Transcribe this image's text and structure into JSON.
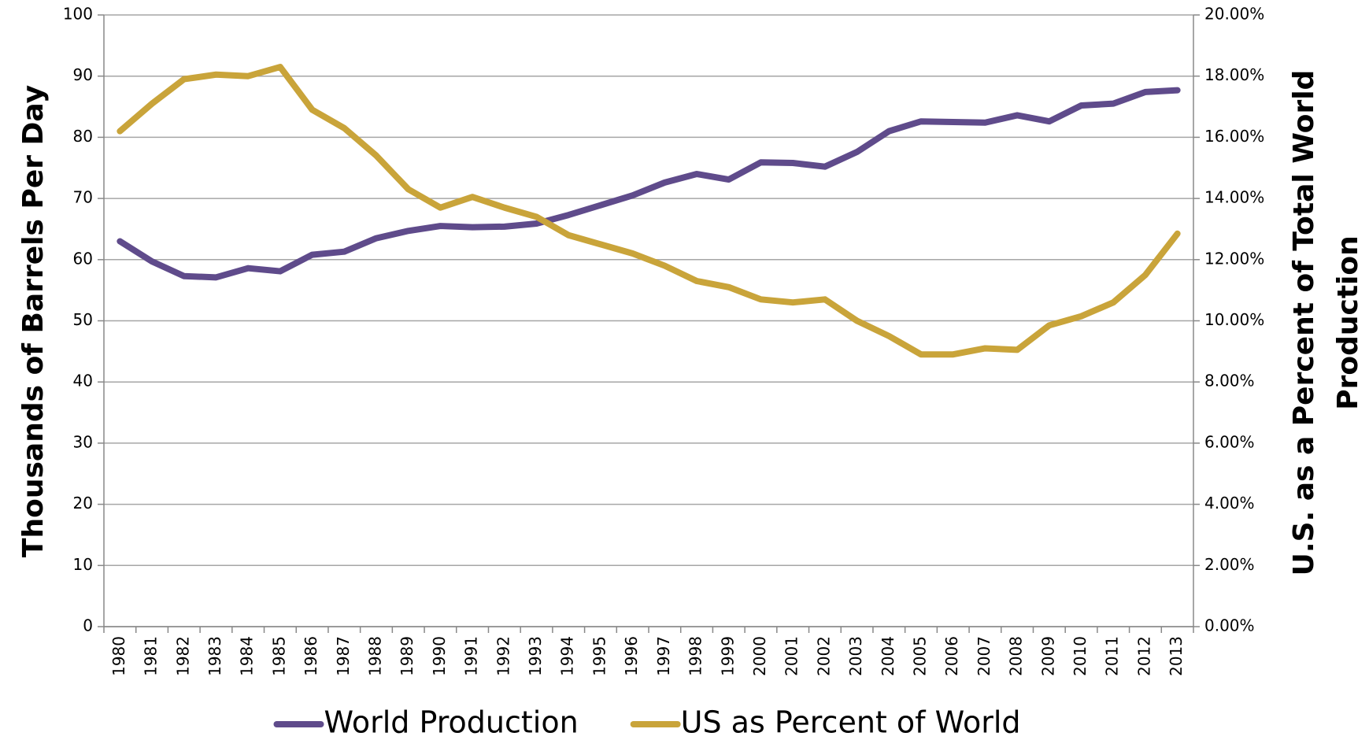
{
  "chart_data": {
    "type": "line",
    "ylabel": "Thousands of Barrels Per Day",
    "y2label": "U.S. as a Percent of Total World Production",
    "categories": [
      "1980",
      "1981",
      "1982",
      "1983",
      "1984",
      "1985",
      "1986",
      "1987",
      "1988",
      "1989",
      "1990",
      "1991",
      "1992",
      "1993",
      "1994",
      "1995",
      "1996",
      "1997",
      "1998",
      "1999",
      "2000",
      "2001",
      "2002",
      "2003",
      "2004",
      "2005",
      "2006",
      "2007",
      "2008",
      "2009",
      "2010",
      "2011",
      "2012",
      "2013"
    ],
    "series": [
      {
        "name": "World Production",
        "color": "#5f4b8b",
        "values": [
          63.0,
          59.7,
          57.3,
          57.1,
          58.6,
          58.1,
          60.8,
          61.3,
          63.5,
          64.7,
          65.5,
          65.3,
          65.4,
          65.9,
          67.3,
          68.9,
          70.5,
          72.6,
          74.0,
          73.1,
          75.9,
          75.8,
          75.2,
          77.6,
          81.0,
          82.6,
          82.5,
          82.4,
          83.6,
          82.6,
          85.2,
          85.5,
          87.4,
          87.7
        ]
      },
      {
        "name": "US as Percent of World",
        "color": "#c9a43a",
        "axis": "y2",
        "values": [
          16.2,
          17.1,
          17.9,
          18.05,
          18.0,
          18.3,
          16.9,
          16.3,
          15.4,
          14.3,
          13.7,
          14.05,
          13.7,
          13.4,
          12.8,
          12.5,
          12.2,
          11.8,
          11.3,
          11.1,
          10.7,
          10.6,
          10.7,
          10.0,
          9.5,
          8.9,
          8.9,
          9.1,
          9.05,
          9.85,
          10.15,
          10.6,
          11.5,
          12.85
        ]
      }
    ],
    "ylim": [
      0,
      100
    ],
    "yticks": [
      0,
      10,
      20,
      30,
      40,
      50,
      60,
      70,
      80,
      90,
      100
    ],
    "y2lim": [
      0,
      20
    ],
    "y2ticks": [
      {
        "value": 0,
        "label": "0.00%"
      },
      {
        "value": 2,
        "label": "2.00%"
      },
      {
        "value": 4,
        "label": "4.00%"
      },
      {
        "value": 6,
        "label": "6.00%"
      },
      {
        "value": 8,
        "label": "8.00%"
      },
      {
        "value": 10,
        "label": "10.00%"
      },
      {
        "value": 12,
        "label": "12.00%"
      },
      {
        "value": 14,
        "label": "14.00%"
      },
      {
        "value": 16,
        "label": "16.00%"
      },
      {
        "value": 18,
        "label": "18.00%"
      },
      {
        "value": 20,
        "label": "20.00%"
      }
    ],
    "grid": true,
    "legend": "bottom"
  }
}
